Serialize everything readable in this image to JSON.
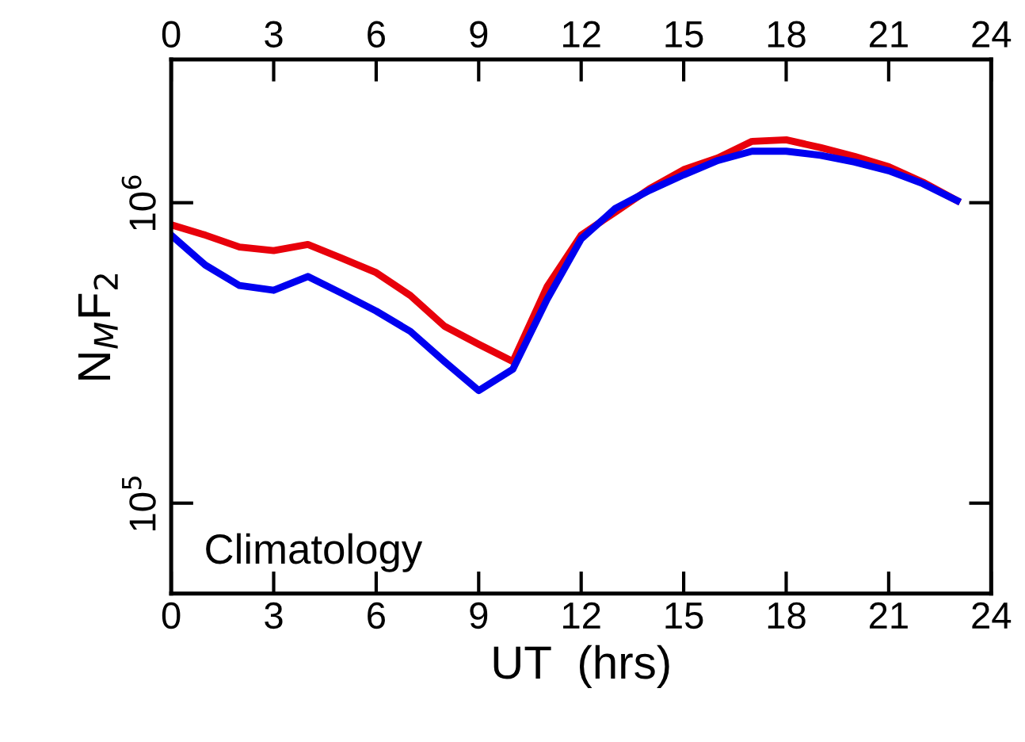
{
  "chart_data": {
    "type": "line",
    "xlabel": "UT  (hrs)",
    "ylabel": "N$_{M}$F$_{2}$",
    "x": [
      0,
      1,
      2,
      3,
      4,
      5,
      6,
      7,
      8,
      9,
      10,
      11,
      12,
      13,
      14,
      15,
      16,
      17,
      18,
      19,
      20,
      21,
      22,
      23
    ],
    "series": [
      {
        "color": "#e8000b",
        "values": [
          844000,
          780000,
          712000,
          693000,
          726000,
          653000,
          585000,
          491000,
          388000,
          338000,
          296000,
          525000,
          780000,
          931000,
          1112000,
          1288000,
          1410000,
          1600000,
          1619000,
          1526000,
          1427000,
          1318000,
          1171000,
          1016000
        ]
      },
      {
        "color": "#0000f0",
        "values": [
          780000,
          620000,
          530000,
          511000,
          568000,
          499000,
          436000,
          373000,
          296000,
          237000,
          279000,
          476000,
          758000,
          957000,
          1099000,
          1238000,
          1382000,
          1484000,
          1484000,
          1438000,
          1366000,
          1277000,
          1157000,
          1016000
        ]
      }
    ],
    "xlim": [
      0,
      24
    ],
    "xticks": [
      0,
      3,
      6,
      9,
      12,
      15,
      18,
      21,
      24
    ],
    "x2lim": [
      0,
      24
    ],
    "x2ticks": [
      0,
      3,
      6,
      9,
      12,
      15,
      18,
      21,
      24
    ],
    "ylim": [
      50000,
      3000000
    ],
    "yticks": [
      {
        "value": 100000,
        "label": "10$^{5}$"
      },
      {
        "value": 1000000,
        "label": "10$^{6}$"
      }
    ],
    "log": "y",
    "grid": false,
    "legend": false,
    "marker": "none",
    "line_style": "solid",
    "annotations": [
      "Climatology"
    ]
  }
}
